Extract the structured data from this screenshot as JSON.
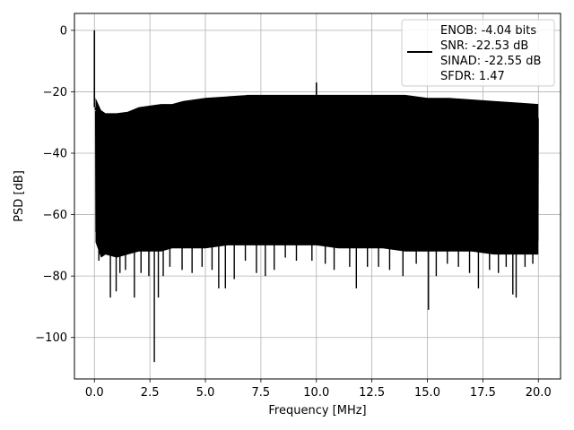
{
  "chart_data": {
    "type": "line",
    "title": "",
    "xlabel": "Frequency [MHz]",
    "ylabel": "PSD [dB]",
    "xlim": [
      -0.9,
      21.0
    ],
    "ylim": [
      -113.5,
      5.5
    ],
    "x_ticks": [
      {
        "value": 0.0,
        "label": "0.0"
      },
      {
        "value": 2.5,
        "label": "2.5"
      },
      {
        "value": 5.0,
        "label": "5.0"
      },
      {
        "value": 7.5,
        "label": "7.5"
      },
      {
        "value": 10.0,
        "label": "10.0"
      },
      {
        "value": 12.5,
        "label": "12.5"
      },
      {
        "value": 15.0,
        "label": "15.0"
      },
      {
        "value": 17.5,
        "label": "17.5"
      },
      {
        "value": 20.0,
        "label": "20.0"
      }
    ],
    "y_ticks": [
      {
        "value": 0,
        "label": "0"
      },
      {
        "value": -20,
        "label": "−20"
      },
      {
        "value": -40,
        "label": "−40"
      },
      {
        "value": -60,
        "label": "−60"
      },
      {
        "value": -80,
        "label": "−80"
      },
      {
        "value": -100,
        "label": "−100"
      }
    ],
    "grid": true,
    "legend": {
      "placement": "top-right",
      "entries": [
        "ENOB: -4.04 bits",
        "SNR: -22.53 dB",
        "SINAD: -22.55 dB",
        "SFDR: 1.47"
      ]
    },
    "series": [
      {
        "color": "#000000",
        "envelope": [
          {
            "x": 0.05,
            "top": -25,
            "bottom": -66
          },
          {
            "x": 0.3,
            "top": -29,
            "bottom": -71
          },
          {
            "x": 0.5,
            "top": -30,
            "bottom": -70
          },
          {
            "x": 1.0,
            "top": -30,
            "bottom": -71
          },
          {
            "x": 1.5,
            "top": -29.5,
            "bottom": -70
          },
          {
            "x": 2.0,
            "top": -28,
            "bottom": -69
          },
          {
            "x": 2.5,
            "top": -27.5,
            "bottom": -69
          },
          {
            "x": 3.0,
            "top": -27,
            "bottom": -69
          },
          {
            "x": 3.5,
            "top": -27,
            "bottom": -68
          },
          {
            "x": 4.0,
            "top": -26,
            "bottom": -68
          },
          {
            "x": 5.0,
            "top": -25,
            "bottom": -68
          },
          {
            "x": 6.0,
            "top": -24.5,
            "bottom": -67
          },
          {
            "x": 7.0,
            "top": -24,
            "bottom": -67
          },
          {
            "x": 8.0,
            "top": -24,
            "bottom": -67
          },
          {
            "x": 9.0,
            "top": -24,
            "bottom": -67
          },
          {
            "x": 10.0,
            "top": -24,
            "bottom": -67
          },
          {
            "x": 11.0,
            "top": -24,
            "bottom": -68
          },
          {
            "x": 12.0,
            "top": -24,
            "bottom": -68
          },
          {
            "x": 13.0,
            "top": -24,
            "bottom": -68
          },
          {
            "x": 14.0,
            "top": -24,
            "bottom": -69
          },
          {
            "x": 15.0,
            "top": -25,
            "bottom": -69
          },
          {
            "x": 16.0,
            "top": -25,
            "bottom": -69
          },
          {
            "x": 17.0,
            "top": -25.5,
            "bottom": -69
          },
          {
            "x": 18.0,
            "top": -26,
            "bottom": -70
          },
          {
            "x": 19.0,
            "top": -26.5,
            "bottom": -70
          },
          {
            "x": 20.0,
            "top": -27,
            "bottom": -70
          }
        ],
        "peaks": [
          {
            "x": 0.0,
            "y": 0
          },
          {
            "x": 0.05,
            "y": -26
          },
          {
            "x": 6.9,
            "y": -21
          },
          {
            "x": 10.0,
            "y": -17
          },
          {
            "x": 19.9,
            "y": -25.5
          }
        ],
        "dips": [
          {
            "x": 0.1,
            "y": -66
          },
          {
            "x": 0.2,
            "y": -75
          },
          {
            "x": 0.45,
            "y": -73
          },
          {
            "x": 0.72,
            "y": -87
          },
          {
            "x": 0.98,
            "y": -85
          },
          {
            "x": 1.15,
            "y": -79
          },
          {
            "x": 1.4,
            "y": -78
          },
          {
            "x": 1.8,
            "y": -87
          },
          {
            "x": 2.1,
            "y": -79
          },
          {
            "x": 2.45,
            "y": -80
          },
          {
            "x": 2.7,
            "y": -108
          },
          {
            "x": 2.88,
            "y": -87
          },
          {
            "x": 3.1,
            "y": -80
          },
          {
            "x": 3.4,
            "y": -77
          },
          {
            "x": 3.95,
            "y": -78
          },
          {
            "x": 4.4,
            "y": -79
          },
          {
            "x": 4.85,
            "y": -77
          },
          {
            "x": 5.3,
            "y": -78
          },
          {
            "x": 5.6,
            "y": -84
          },
          {
            "x": 5.9,
            "y": -84
          },
          {
            "x": 6.3,
            "y": -81
          },
          {
            "x": 6.8,
            "y": -75
          },
          {
            "x": 7.3,
            "y": -79
          },
          {
            "x": 7.7,
            "y": -80
          },
          {
            "x": 8.1,
            "y": -78
          },
          {
            "x": 8.6,
            "y": -74
          },
          {
            "x": 9.1,
            "y": -75
          },
          {
            "x": 9.8,
            "y": -75
          },
          {
            "x": 10.4,
            "y": -76
          },
          {
            "x": 10.8,
            "y": -78
          },
          {
            "x": 11.5,
            "y": -77
          },
          {
            "x": 11.8,
            "y": -84
          },
          {
            "x": 12.3,
            "y": -77
          },
          {
            "x": 12.8,
            "y": -77
          },
          {
            "x": 13.3,
            "y": -78
          },
          {
            "x": 13.9,
            "y": -80
          },
          {
            "x": 14.5,
            "y": -76
          },
          {
            "x": 15.05,
            "y": -91
          },
          {
            "x": 15.4,
            "y": -80
          },
          {
            "x": 15.9,
            "y": -76
          },
          {
            "x": 16.4,
            "y": -77
          },
          {
            "x": 16.9,
            "y": -79
          },
          {
            "x": 17.3,
            "y": -84
          },
          {
            "x": 17.8,
            "y": -78
          },
          {
            "x": 18.2,
            "y": -79
          },
          {
            "x": 18.55,
            "y": -77
          },
          {
            "x": 18.85,
            "y": -86
          },
          {
            "x": 19.0,
            "y": -87
          },
          {
            "x": 19.4,
            "y": -77
          },
          {
            "x": 19.75,
            "y": -76
          }
        ]
      }
    ]
  }
}
